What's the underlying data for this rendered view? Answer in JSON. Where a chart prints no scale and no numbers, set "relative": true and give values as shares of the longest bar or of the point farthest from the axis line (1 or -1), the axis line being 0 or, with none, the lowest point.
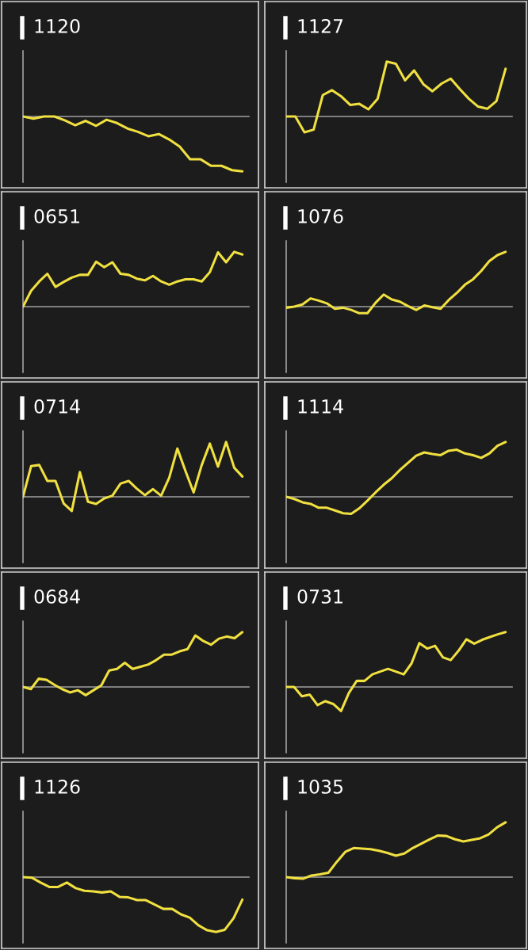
{
  "chart_data": [
    {
      "type": "line",
      "title": "1120",
      "relative": true,
      "categories": [
        null,
        null,
        null,
        null,
        null,
        null,
        null,
        null,
        null,
        null,
        null,
        null,
        null,
        null,
        null,
        null,
        null,
        null,
        null,
        null,
        null,
        null
      ],
      "series": [
        {
          "color": "#f0e040",
          "values": [
            0,
            -0.04,
            0,
            0,
            -0.07,
            -0.16,
            -0.08,
            -0.17,
            -0.06,
            -0.12,
            -0.22,
            -0.28,
            -0.36,
            -0.32,
            -0.42,
            -0.55,
            -0.78,
            -0.78,
            -0.9,
            -0.9,
            -0.98,
            -1
          ]
        }
      ]
    },
    {
      "type": "line",
      "title": "1127",
      "relative": true,
      "categories": [
        null,
        null,
        null,
        null,
        null,
        null,
        null,
        null,
        null,
        null,
        null,
        null,
        null,
        null,
        null,
        null,
        null,
        null,
        null,
        null,
        null,
        null,
        null,
        null,
        null
      ],
      "series": [
        {
          "color": "#f0e040",
          "values": [
            0,
            0,
            -0.29,
            -0.24,
            0.39,
            0.48,
            0.37,
            0.21,
            0.23,
            0.13,
            0.32,
            1,
            0.96,
            0.66,
            0.84,
            0.59,
            0.46,
            0.6,
            0.69,
            0.5,
            0.32,
            0.18,
            0.14,
            0.28,
            0.87
          ]
        }
      ]
    },
    {
      "type": "line",
      "title": "0651",
      "relative": true,
      "categories": [
        null,
        null,
        null,
        null,
        null,
        null,
        null,
        null,
        null,
        null,
        null,
        null,
        null,
        null,
        null,
        null,
        null,
        null,
        null,
        null,
        null,
        null,
        null,
        null,
        null,
        null,
        null,
        null
      ],
      "series": [
        {
          "color": "#f0e040",
          "values": [
            0,
            0.29,
            0.46,
            0.6,
            0.36,
            0.45,
            0.53,
            0.58,
            0.58,
            0.82,
            0.72,
            0.81,
            0.6,
            0.58,
            0.51,
            0.48,
            0.56,
            0.46,
            0.4,
            0.46,
            0.5,
            0.5,
            0.46,
            0.63,
            0.99,
            0.81,
            1,
            0.95
          ]
        }
      ]
    },
    {
      "type": "line",
      "title": "1076",
      "relative": true,
      "categories": [
        null,
        null,
        null,
        null,
        null,
        null,
        null,
        null,
        null,
        null,
        null,
        null,
        null,
        null,
        null,
        null,
        null,
        null,
        null,
        null,
        null,
        null,
        null,
        null,
        null,
        null,
        null,
        null
      ],
      "series": [
        {
          "color": "#f0e040",
          "values": [
            -0.02,
            0,
            0.04,
            0.15,
            0.11,
            0.06,
            -0.04,
            -0.02,
            -0.06,
            -0.12,
            -0.12,
            0.07,
            0.22,
            0.13,
            0.09,
            0.01,
            -0.06,
            0.02,
            -0.01,
            -0.04,
            0.12,
            0.25,
            0.4,
            0.5,
            0.65,
            0.83,
            0.94,
            1
          ]
        }
      ]
    },
    {
      "type": "line",
      "title": "0714",
      "relative": true,
      "categories": [
        null,
        null,
        null,
        null,
        null,
        null,
        null,
        null,
        null,
        null,
        null,
        null,
        null,
        null,
        null,
        null,
        null,
        null,
        null,
        null,
        null,
        null,
        null,
        null,
        null,
        null,
        null,
        null
      ],
      "series": [
        {
          "color": "#f0e040",
          "values": [
            0,
            0.56,
            0.58,
            0.29,
            0.29,
            -0.12,
            -0.26,
            0.45,
            -0.09,
            -0.13,
            -0.03,
            0.02,
            0.24,
            0.29,
            0.15,
            0.03,
            0.14,
            0.02,
            0.35,
            0.88,
            0.47,
            0.08,
            0.58,
            0.97,
            0.55,
            1,
            0.53,
            0.37
          ]
        }
      ]
    },
    {
      "type": "line",
      "title": "1114",
      "relative": true,
      "categories": [
        null,
        null,
        null,
        null,
        null,
        null,
        null,
        null,
        null,
        null,
        null,
        null,
        null,
        null,
        null,
        null,
        null,
        null,
        null,
        null,
        null,
        null,
        null,
        null,
        null,
        null,
        null,
        null
      ],
      "series": [
        {
          "color": "#f0e040",
          "values": [
            0,
            -0.04,
            -0.1,
            -0.13,
            -0.2,
            -0.2,
            -0.25,
            -0.3,
            -0.31,
            -0.21,
            -0.07,
            0.08,
            0.22,
            0.34,
            0.49,
            0.62,
            0.75,
            0.81,
            0.78,
            0.76,
            0.84,
            0.86,
            0.79,
            0.76,
            0.71,
            0.79,
            0.93,
            1
          ]
        }
      ]
    },
    {
      "type": "line",
      "title": "0684",
      "relative": true,
      "categories": [
        null,
        null,
        null,
        null,
        null,
        null,
        null,
        null,
        null,
        null,
        null,
        null,
        null,
        null,
        null,
        null,
        null,
        null,
        null,
        null,
        null,
        null,
        null,
        null,
        null,
        null,
        null,
        null,
        null
      ],
      "series": [
        {
          "color": "#f0e040",
          "values": [
            0,
            -0.04,
            0.15,
            0.13,
            0.04,
            -0.04,
            -0.1,
            -0.06,
            -0.15,
            -0.06,
            0.03,
            0.3,
            0.33,
            0.44,
            0.33,
            0.37,
            0.41,
            0.49,
            0.59,
            0.59,
            0.65,
            0.69,
            0.94,
            0.84,
            0.77,
            0.88,
            0.92,
            0.89,
            1
          ]
        }
      ]
    },
    {
      "type": "line",
      "title": "0731",
      "relative": true,
      "categories": [
        null,
        null,
        null,
        null,
        null,
        null,
        null,
        null,
        null,
        null,
        null,
        null,
        null,
        null,
        null,
        null,
        null,
        null,
        null,
        null,
        null,
        null,
        null,
        null,
        null,
        null,
        null,
        null,
        null
      ],
      "series": [
        {
          "color": "#f0e040",
          "values": [
            0,
            0,
            -0.17,
            -0.14,
            -0.33,
            -0.26,
            -0.31,
            -0.44,
            -0.11,
            0.11,
            0.11,
            0.23,
            0.28,
            0.33,
            0.28,
            0.23,
            0.43,
            0.8,
            0.7,
            0.75,
            0.54,
            0.49,
            0.66,
            0.87,
            0.79,
            0.86,
            0.91,
            0.96,
            1
          ]
        }
      ]
    },
    {
      "type": "line",
      "title": "1126",
      "relative": true,
      "categories": [
        null,
        null,
        null,
        null,
        null,
        null,
        null,
        null,
        null,
        null,
        null,
        null,
        null,
        null,
        null,
        null,
        null,
        null,
        null,
        null,
        null,
        null,
        null,
        null,
        null,
        null
      ],
      "series": [
        {
          "color": "#f0e040",
          "values": [
            0,
            -0.01,
            -0.1,
            -0.18,
            -0.18,
            -0.1,
            -0.2,
            -0.25,
            -0.26,
            -0.28,
            -0.26,
            -0.36,
            -0.37,
            -0.42,
            -0.42,
            -0.5,
            -0.58,
            -0.58,
            -0.68,
            -0.74,
            -0.88,
            -0.97,
            -1,
            -0.96,
            -0.75,
            -0.41
          ]
        }
      ]
    },
    {
      "type": "line",
      "title": "1035",
      "relative": true,
      "categories": [
        null,
        null,
        null,
        null,
        null,
        null,
        null,
        null,
        null,
        null,
        null,
        null,
        null,
        null,
        null,
        null,
        null,
        null,
        null,
        null,
        null,
        null,
        null,
        null,
        null,
        null,
        null
      ],
      "series": [
        {
          "color": "#f0e040",
          "values": [
            0,
            -0.02,
            -0.03,
            0.03,
            0.05,
            0.08,
            0.28,
            0.46,
            0.53,
            0.52,
            0.51,
            0.48,
            0.44,
            0.39,
            0.43,
            0.53,
            0.61,
            0.69,
            0.76,
            0.75,
            0.69,
            0.65,
            0.68,
            0.71,
            0.78,
            0.91,
            1
          ]
        }
      ]
    }
  ]
}
